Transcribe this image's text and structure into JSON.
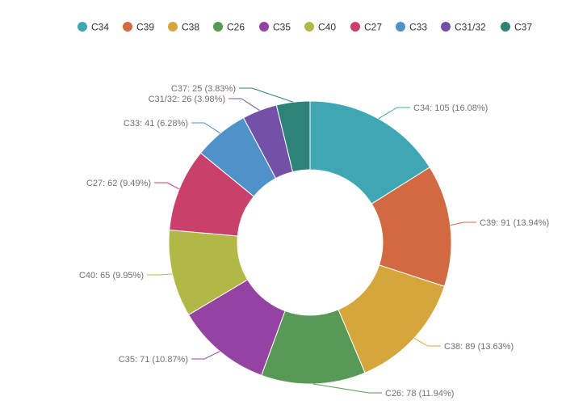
{
  "chart_data": {
    "type": "pie",
    "donut": true,
    "legend_position": "top",
    "series": [
      {
        "name": "C34",
        "value": 105,
        "percent": "16.08%",
        "label": "C34: 105 (16.08%)",
        "color": "#3fa7b4"
      },
      {
        "name": "C39",
        "value": 91,
        "percent": "13.94%",
        "label": "C39: 91 (13.94%)",
        "color": "#d16941"
      },
      {
        "name": "C38",
        "value": 89,
        "percent": "13.63%",
        "label": "C38: 89 (13.63%)",
        "color": "#d4a63b"
      },
      {
        "name": "C26",
        "value": 78,
        "percent": "11.94%",
        "label": "C26: 78 (11.94%)",
        "color": "#579955"
      },
      {
        "name": "C35",
        "value": 71,
        "percent": "10.87%",
        "label": "C35: 71 (10.87%)",
        "color": "#9543a2"
      },
      {
        "name": "C40",
        "value": 65,
        "percent": "9.95%",
        "label": "C40: 65 (9.95%)",
        "color": "#b1b845"
      },
      {
        "name": "C27",
        "value": 62,
        "percent": "9.49%",
        "label": "C27: 62 (9.49%)",
        "color": "#c9406b"
      },
      {
        "name": "C33",
        "value": 41,
        "percent": "6.28%",
        "label": "C33: 41 (6.28%)",
        "color": "#4e92c9"
      },
      {
        "name": "C31/32",
        "value": 26,
        "percent": "3.98%",
        "label": "C31/32: 26 (3.98%)",
        "color": "#7351a8"
      },
      {
        "name": "C37",
        "value": 25,
        "percent": "3.83%",
        "label": "C37: 25 (3.83%)",
        "color": "#2d8378"
      }
    ]
  }
}
